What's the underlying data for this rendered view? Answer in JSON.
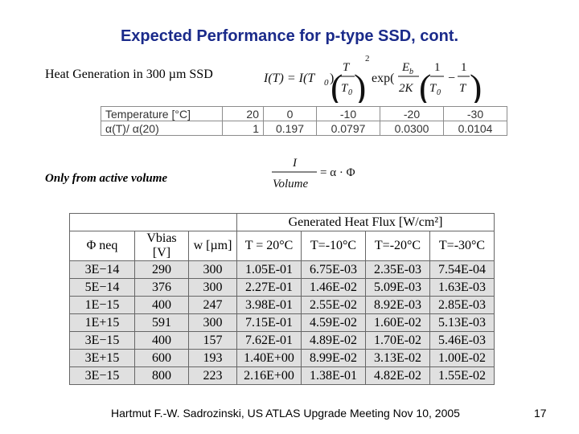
{
  "slide": {
    "title": "Expected Performance for p-type SSD, cont.",
    "heat_label": "Heat Generation in 300 µm SSD",
    "active_label": "Only from active volume",
    "footer": "Hartmut F.-W. Sadrozinski, US ATLAS Upgrade Meeting Nov 10,  2005",
    "page_number": "17"
  },
  "formula1": {
    "lhs": "I(T) = I(T",
    "lhs_sub": "0",
    "rhs_close": ")",
    "frac_num": "T",
    "frac_den": "T",
    "frac_den_sub": "0",
    "power": "2",
    "exp": "exp(",
    "e_num": "E",
    "e_num_sub": "b",
    "e_den": "2K",
    "one1": "1",
    "t0": "T",
    "t0_sub": "0",
    "minus": "−",
    "one2": "1",
    "t2": "T",
    "close": ")"
  },
  "formula2": {
    "num": "I",
    "den": "Volume",
    "rhs": "= α · Φ"
  },
  "temp_table": {
    "row_labels": [
      "Temperature  [°C]",
      "α(T)/ α(20)"
    ],
    "temperatures": [
      "20",
      "0",
      "-10",
      "-20",
      "-30"
    ],
    "ratios": [
      "1",
      "0.197",
      "0.0797",
      "0.0300",
      "0.0104"
    ]
  },
  "flux_table": {
    "group_header": "Generated Heat Flux [W/cm²]",
    "headers": [
      "Φ neq",
      "Vbias [V]",
      "w [µm]",
      "T = 20°C",
      "T=-10°C",
      "T=-20°C",
      "T=-30°C"
    ],
    "rows": [
      [
        "3E−14",
        "290",
        "300",
        "1.05E-01",
        "6.75E-03",
        "2.35E-03",
        "7.54E-04"
      ],
      [
        "5E−14",
        "376",
        "300",
        "2.27E-01",
        "1.46E-02",
        "5.09E-03",
        "1.63E-03"
      ],
      [
        "1E−15",
        "400",
        "247",
        "3.98E-01",
        "2.55E-02",
        "8.92E-03",
        "2.85E-03"
      ],
      [
        "1E+15",
        "591",
        "300",
        "7.15E-01",
        "4.59E-02",
        "1.60E-02",
        "5.13E-03"
      ],
      [
        "3E−15",
        "400",
        "157",
        "7.62E-01",
        "4.89E-02",
        "1.70E-02",
        "5.46E-03"
      ],
      [
        "3E+15",
        "600",
        "193",
        "1.40E+00",
        "8.99E-02",
        "3.13E-02",
        "1.00E-02"
      ],
      [
        "3E−15",
        "800",
        "223",
        "2.16E+00",
        "1.38E-01",
        "4.82E-02",
        "1.55E-02"
      ]
    ]
  }
}
